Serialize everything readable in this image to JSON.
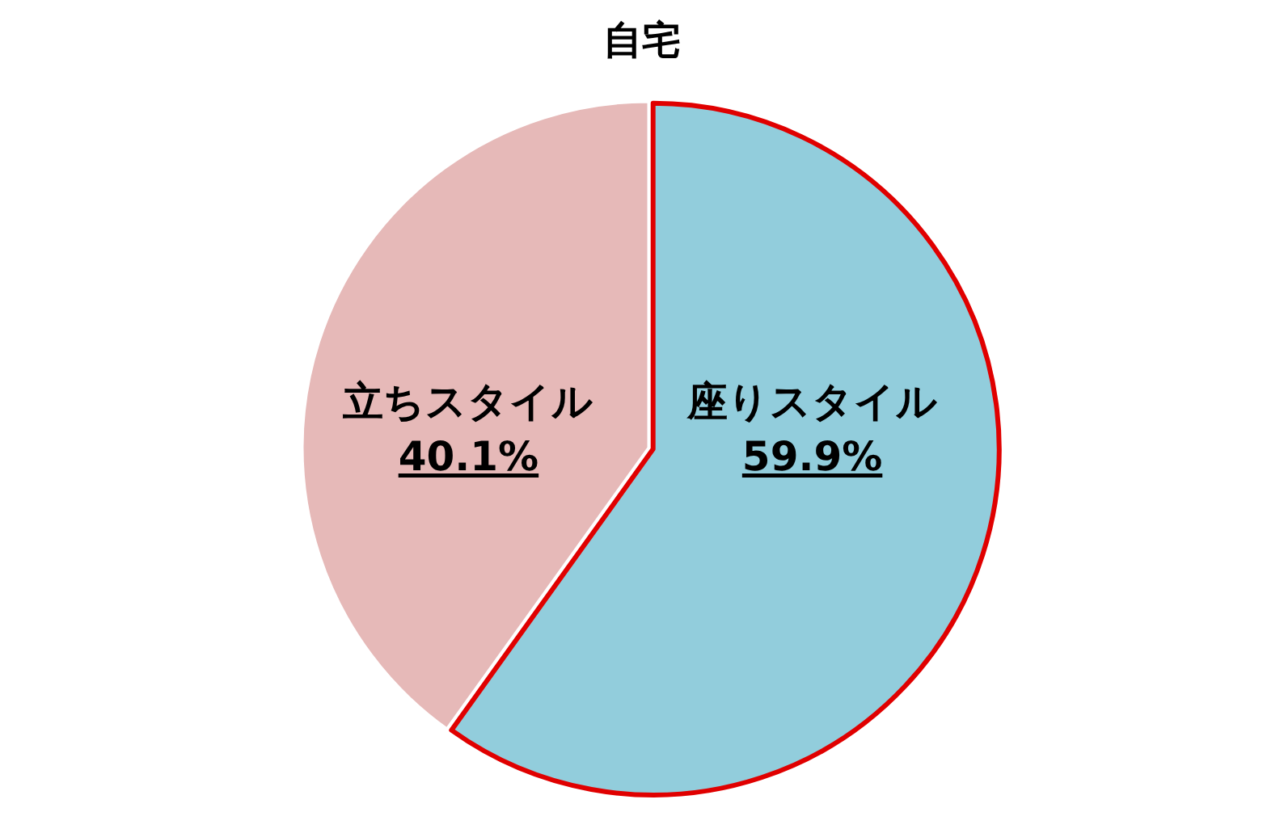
{
  "chart_data": {
    "type": "pie",
    "title": "自宅",
    "categories": [
      "座りスタイル",
      "立ちスタイル"
    ],
    "values": [
      59.9,
      40.1
    ],
    "colors": [
      "#92cddc",
      "#e6b9b8"
    ],
    "value_labels": [
      "59.9%",
      "40.1%"
    ],
    "legend": false
  }
}
